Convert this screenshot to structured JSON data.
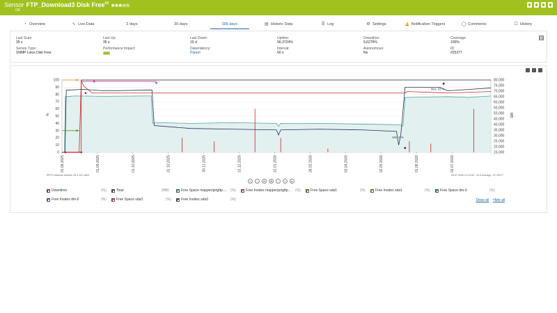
{
  "header": {
    "kind": "Sensor",
    "name": "FTP_Download3 Disk Free",
    "superscript": "#3",
    "stars": "★★★☆☆",
    "status": "OK",
    "bg_color": "#9fc21f"
  },
  "tabs": [
    {
      "label": "Overview",
      "icon": "overview-icon"
    },
    {
      "label": "Live Data",
      "icon": "live-data-icon"
    },
    {
      "label": "2  days",
      "icon": ""
    },
    {
      "label": "30  days",
      "icon": ""
    },
    {
      "label": "365 days",
      "icon": "",
      "active": true
    },
    {
      "label": "Historic Data",
      "icon": "historic-data-icon"
    },
    {
      "label": "Log",
      "icon": "log-icon"
    },
    {
      "label": "Settings",
      "icon": "settings-icon"
    },
    {
      "label": "Notification Triggers",
      "icon": "bell-icon"
    },
    {
      "label": "Comments",
      "icon": "comments-icon"
    },
    {
      "label": "History",
      "icon": "history-icon"
    }
  ],
  "info": {
    "last_scan": {
      "label": "Last Scan:",
      "value": "35 s"
    },
    "last_up": {
      "label": "Last Up:",
      "value": "35 s"
    },
    "last_down": {
      "label": "Last Down:",
      "value": "15 d"
    },
    "uptime": {
      "label": "Uptime:",
      "value": "90,3724%"
    },
    "downtime": {
      "label": "Downtime:",
      "value": "9,6276%"
    },
    "coverage": {
      "label": "Coverage:",
      "value": "100%"
    },
    "sensor_type": {
      "label": "Sensor Type:",
      "value": "SNMP Linux Disk Free"
    },
    "performance_impact": {
      "label": "Performance Impact:"
    },
    "dependency": {
      "label": "Dependency:",
      "value": "Parent"
    },
    "interval": {
      "label": "Interval:",
      "value": "60 s"
    },
    "autonomous": {
      "label": "Autonomous:",
      "value": "No"
    },
    "id": {
      "label": "ID:",
      "value": "#25377"
    }
  },
  "chart_data": {
    "type": "line",
    "y_left": {
      "label": "%",
      "ticks": [
        0,
        10,
        20,
        30,
        40,
        50,
        60,
        70,
        80,
        90,
        100
      ],
      "range": [
        0,
        100
      ]
    },
    "y_right": {
      "label": "MB",
      "ticks": [
        15000,
        20000,
        25000,
        30000,
        35000,
        40000,
        45000,
        50000,
        55000,
        60000,
        65000,
        70000,
        75000,
        80000
      ],
      "range": [
        15000,
        80000
      ]
    },
    "x_ticks": [
      "01.08.2025",
      "01.09.2025",
      "01.10.2025",
      "31.10.2025",
      "30.11.2025",
      "31.12.2025",
      "31.01.2026",
      "28.02.2026",
      "02.04.2026",
      "02.05.2026",
      "01.06.2026",
      "02.07.2026"
    ],
    "annotations": [
      "Max: 92 %",
      "Min: 0 %"
    ],
    "footer_left": "PRTG Network Monitor 26.3.122.1604",
    "footer_right": "20.07.2026 13:13:00 - 24 h Average - ID 25377",
    "colors": {
      "downtime": "#d81c1c",
      "total": "#1f2f5c",
      "free_space_mapper": "#4aa59b",
      "free_space_sda3": "#c62828",
      "fill": "#e2f0ef"
    }
  },
  "legend": {
    "items": [
      {
        "label": "Downtime",
        "unit": "(%)",
        "color": "#d81c1c"
      },
      {
        "label": "Total",
        "unit": "(MB)",
        "color": "#1f2f5c"
      },
      {
        "label": "Free Space mapper/prtgftp-...",
        "unit": "(%)",
        "color": "#4aa59b"
      },
      {
        "label": "Free Inodes mapper/prtgftp...",
        "unit": "(%)",
        "color": "#e23f93"
      },
      {
        "label": "Free Space sda1",
        "unit": "(%)",
        "color": "#6b8e23"
      },
      {
        "label": "Free Inodes sda1",
        "unit": "(%)",
        "color": "#e8912a"
      },
      {
        "label": "Free Space dm-0",
        "unit": "(%)",
        "color": "#138a5a"
      },
      {
        "label": "Free Inodes dm-0",
        "unit": "(%)",
        "color": "#8e44ad"
      },
      {
        "label": "Free Space sda3",
        "unit": "(%)",
        "color": "#c62828"
      },
      {
        "label": "Free Inodes sda3",
        "unit": "(%)",
        "color": "#1f2f5c"
      }
    ],
    "show_all": "Show all",
    "hide_all": "Hide all"
  },
  "nav_buttons": [
    "«",
    "‹",
    "⊖",
    "⊕",
    "›",
    "»",
    "▸"
  ]
}
